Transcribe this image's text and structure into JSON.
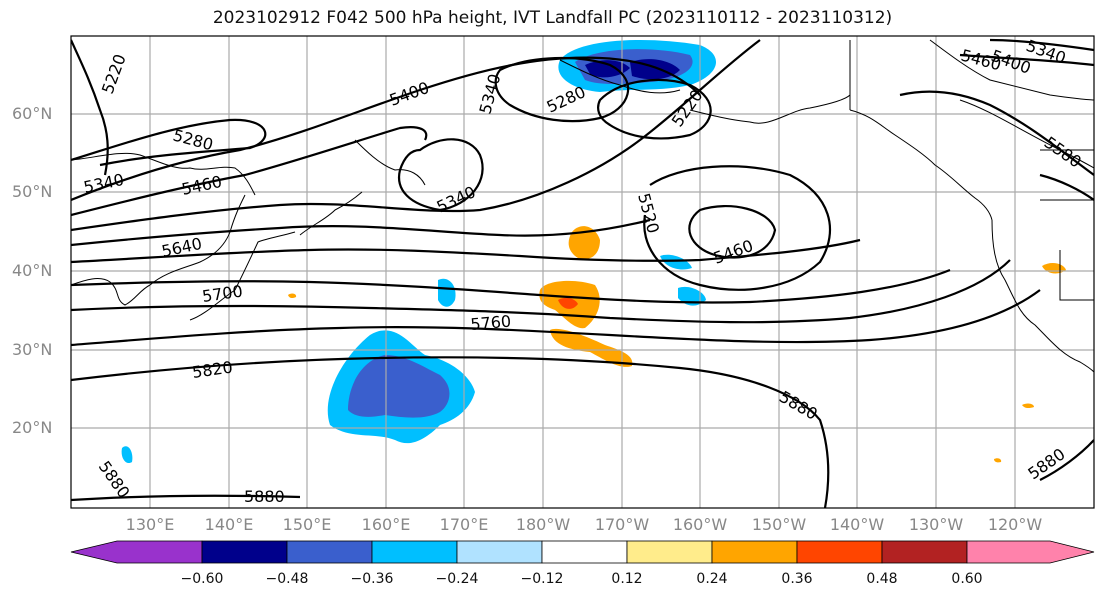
{
  "title": "2023102912 F042 500 hPa height, IVT Landfall PC (2023110112 - 2023110312)",
  "map": {
    "lat_labels": [
      "60°N",
      "50°N",
      "40°N",
      "30°N",
      "20°N"
    ],
    "lon_labels": [
      "130°E",
      "140°E",
      "150°E",
      "160°E",
      "170°E",
      "180°W",
      "170°W",
      "160°W",
      "150°W",
      "140°W",
      "130°W",
      "120°W"
    ],
    "contour_labels": [
      "5220",
      "5280",
      "5340",
      "5460",
      "5640",
      "5700",
      "5760",
      "5820",
      "5880",
      "5880",
      "5400",
      "5340",
      "5280",
      "5340",
      "5220",
      "5520",
      "5460",
      "5880",
      "5880",
      "5580",
      "5460",
      "5400",
      "5340"
    ],
    "colors": {
      "coast": "#000000",
      "grid": "#aaaaaa",
      "contour": "#000000"
    }
  },
  "colorbar": {
    "ticks": [
      "−0.60",
      "−0.48",
      "−0.36",
      "−0.24",
      "−0.12",
      "0.12",
      "0.24",
      "0.36",
      "0.48",
      "0.60"
    ],
    "colors": [
      "#9932cc",
      "#00008b",
      "#3a5fcd",
      "#00bfff",
      "#b0e2ff",
      "#ffffff",
      "#ffec8b",
      "#ffa500",
      "#ff4500",
      "#b22222",
      "#ff82ab"
    ]
  }
}
